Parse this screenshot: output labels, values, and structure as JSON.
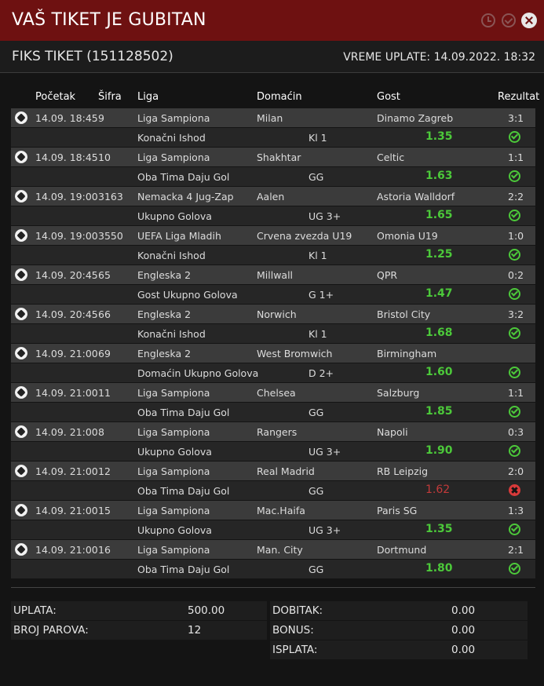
{
  "header": {
    "title": "VAŠ TIKET JE GUBITAN"
  },
  "ticket": {
    "id_label": "FIKS TIKET (151128502)",
    "paid_time": "VREME UPLATE: 14.09.2022. 18:32"
  },
  "columns": {
    "start": "Početak",
    "code": "Šifra",
    "league": "Liga",
    "home": "Domaćin",
    "away": "Gost",
    "result": "Rezultat"
  },
  "matches": [
    {
      "start": "14.09. 18:45",
      "code": "9",
      "league": "Liga Sampiona",
      "home": "Milan",
      "away": "Dinamo Zagreb",
      "result": "3:1",
      "bet_type": "Konačni Ishod",
      "pick": "Kl 1",
      "odd": "1.35",
      "status": "win"
    },
    {
      "start": "14.09. 18:45",
      "code": "10",
      "league": "Liga Sampiona",
      "home": "Shakhtar",
      "away": "Celtic",
      "result": "1:1",
      "bet_type": "Oba Tima Daju Gol",
      "pick": "GG",
      "odd": "1.63",
      "status": "win"
    },
    {
      "start": "14.09. 19:00",
      "code": "3163",
      "league": "Nemacka 4 Jug-Zap",
      "home": "Aalen",
      "away": "Astoria Walldorf",
      "result": "2:2",
      "bet_type": "Ukupno Golova",
      "pick": "UG 3+",
      "odd": "1.65",
      "status": "win"
    },
    {
      "start": "14.09. 19:00",
      "code": "3550",
      "league": "UEFA Liga Mladih",
      "home": "Crvena zvezda U19",
      "away": "Omonia U19",
      "result": "1:0",
      "bet_type": "Konačni Ishod",
      "pick": "Kl 1",
      "odd": "1.25",
      "status": "win"
    },
    {
      "start": "14.09. 20:45",
      "code": "65",
      "league": "Engleska 2",
      "home": "Millwall",
      "away": "QPR",
      "result": "0:2",
      "bet_type": "Gost Ukupno Golova",
      "pick": "G 1+",
      "odd": "1.47",
      "status": "win"
    },
    {
      "start": "14.09. 20:45",
      "code": "66",
      "league": "Engleska 2",
      "home": "Norwich",
      "away": "Bristol City",
      "result": "3:2",
      "bet_type": "Konačni Ishod",
      "pick": "Kl 1",
      "odd": "1.68",
      "status": "win"
    },
    {
      "start": "14.09. 21:00",
      "code": "69",
      "league": "Engleska 2",
      "home": "West Bromwich",
      "away": "Birmingham",
      "result": "",
      "bet_type": "Domaćin Ukupno Golova",
      "pick": "D 2+",
      "odd": "1.60",
      "status": "win"
    },
    {
      "start": "14.09. 21:00",
      "code": "11",
      "league": "Liga Sampiona",
      "home": "Chelsea",
      "away": "Salzburg",
      "result": "1:1",
      "bet_type": "Oba Tima Daju Gol",
      "pick": "GG",
      "odd": "1.85",
      "status": "win"
    },
    {
      "start": "14.09. 21:00",
      "code": "8",
      "league": "Liga Sampiona",
      "home": "Rangers",
      "away": "Napoli",
      "result": "0:3",
      "bet_type": "Ukupno Golova",
      "pick": "UG 3+",
      "odd": "1.90",
      "status": "win"
    },
    {
      "start": "14.09. 21:00",
      "code": "12",
      "league": "Liga Sampiona",
      "home": "Real Madrid",
      "away": "RB Leipzig",
      "result": "2:0",
      "bet_type": "Oba Tima Daju Gol",
      "pick": "GG",
      "odd": "1.62",
      "status": "loss"
    },
    {
      "start": "14.09. 21:00",
      "code": "15",
      "league": "Liga Sampiona",
      "home": "Mac.Haifa",
      "away": "Paris SG",
      "result": "1:3",
      "bet_type": "Ukupno Golova",
      "pick": "UG 3+",
      "odd": "1.35",
      "status": "win"
    },
    {
      "start": "14.09. 21:00",
      "code": "16",
      "league": "Liga Sampiona",
      "home": "Man. City",
      "away": "Dortmund",
      "result": "2:1",
      "bet_type": "Oba Tima Daju Gol",
      "pick": "GG",
      "odd": "1.80",
      "status": "win"
    }
  ],
  "summary": {
    "stake_label": "UPLATA:",
    "stake": "500.00",
    "pairs_label": "BROJ PAROVA:",
    "pairs": "12",
    "win_label": "DOBITAK:",
    "win": "0.00",
    "bonus_label": "BONUS:",
    "bonus": "0.00",
    "payout_label": "ISPLATA:",
    "payout": "0.00"
  },
  "colors": {
    "header_bg": "#6e1111",
    "odd_green": "#4cc93a",
    "odd_red": "#c23a3a"
  }
}
